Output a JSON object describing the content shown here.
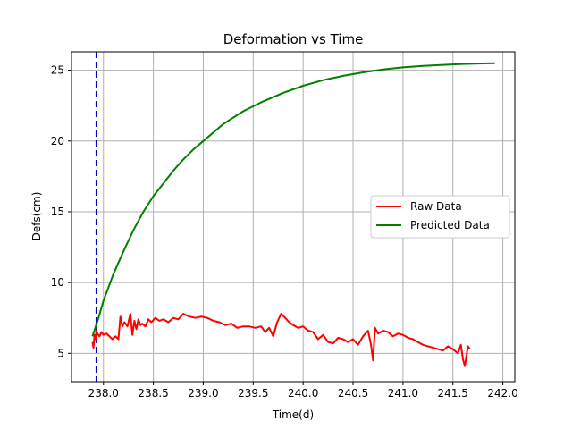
{
  "chart_data": {
    "type": "line",
    "title": "Deformation vs Time",
    "xlabel": "Time(d)",
    "ylabel": "Defs(cm)",
    "xlim": [
      237.68,
      242.12
    ],
    "ylim": [
      3.0,
      26.3
    ],
    "xticks": [
      238.0,
      238.5,
      239.0,
      239.5,
      240.0,
      240.5,
      241.0,
      241.5,
      242.0
    ],
    "xtick_labels": [
      "238.0",
      "238.5",
      "239.0",
      "239.5",
      "240.0",
      "240.5",
      "241.0",
      "241.5",
      "242.0"
    ],
    "yticks": [
      5,
      10,
      15,
      20,
      25
    ],
    "ytick_labels": [
      "5",
      "10",
      "15",
      "20",
      "25"
    ],
    "grid": true,
    "legend_position": "center-right",
    "vline": {
      "x": 237.93,
      "color": "#0000bf",
      "style": "dashed"
    },
    "series": [
      {
        "name": "Raw Data",
        "color": "#ff0000",
        "x": [
          237.89,
          237.9,
          237.91,
          237.92,
          237.93,
          237.94,
          237.96,
          237.98,
          238.0,
          238.03,
          238.06,
          238.09,
          238.12,
          238.15,
          238.17,
          238.19,
          238.21,
          238.24,
          238.27,
          238.29,
          238.31,
          238.33,
          238.35,
          238.37,
          238.39,
          238.42,
          238.45,
          238.48,
          238.52,
          238.56,
          238.6,
          238.65,
          238.7,
          238.75,
          238.8,
          238.86,
          238.92,
          238.98,
          239.04,
          239.1,
          239.16,
          239.22,
          239.28,
          239.34,
          239.4,
          239.46,
          239.52,
          239.58,
          239.62,
          239.66,
          239.7,
          239.74,
          239.78,
          239.82,
          239.86,
          239.9,
          239.95,
          240.0,
          240.05,
          240.1,
          240.15,
          240.2,
          240.25,
          240.3,
          240.35,
          240.4,
          240.45,
          240.5,
          240.55,
          240.6,
          240.65,
          240.68,
          240.7,
          240.72,
          240.75,
          240.8,
          240.85,
          240.9,
          240.95,
          241.0,
          241.05,
          241.1,
          241.15,
          241.2,
          241.25,
          241.3,
          241.35,
          241.4,
          241.45,
          241.5,
          241.55,
          241.58,
          241.6,
          241.62,
          241.65,
          241.67
        ],
        "y": [
          5.8,
          5.4,
          6.3,
          6.0,
          6.6,
          6.4,
          6.2,
          6.5,
          6.3,
          6.4,
          6.2,
          6.0,
          6.2,
          6.0,
          7.6,
          6.9,
          7.2,
          6.9,
          7.8,
          6.3,
          7.3,
          6.7,
          7.4,
          7.0,
          7.1,
          6.9,
          7.4,
          7.2,
          7.5,
          7.3,
          7.4,
          7.2,
          7.5,
          7.4,
          7.8,
          7.6,
          7.5,
          7.6,
          7.5,
          7.3,
          7.2,
          7.0,
          7.1,
          6.8,
          6.9,
          6.9,
          6.8,
          6.9,
          6.5,
          6.8,
          6.2,
          7.2,
          7.8,
          7.5,
          7.2,
          7.0,
          6.8,
          6.9,
          6.6,
          6.5,
          6.0,
          6.3,
          5.8,
          5.7,
          6.1,
          6.0,
          5.8,
          6.0,
          5.6,
          6.2,
          6.6,
          5.6,
          4.5,
          6.8,
          6.4,
          6.6,
          6.5,
          6.2,
          6.4,
          6.3,
          6.1,
          6.0,
          5.8,
          5.6,
          5.5,
          5.4,
          5.3,
          5.2,
          5.5,
          5.3,
          5.0,
          5.6,
          4.6,
          4.1,
          5.5,
          5.3
        ]
      },
      {
        "name": "Predicted Data",
        "color": "#008000",
        "x": [
          237.89,
          237.95,
          238.0,
          238.1,
          238.2,
          238.3,
          238.4,
          238.5,
          238.6,
          238.7,
          238.8,
          238.9,
          239.0,
          239.2,
          239.4,
          239.6,
          239.8,
          240.0,
          240.2,
          240.4,
          240.6,
          240.8,
          241.0,
          241.2,
          241.4,
          241.6,
          241.8,
          241.92
        ],
        "y": [
          6.2,
          7.5,
          8.7,
          10.6,
          12.2,
          13.7,
          15.0,
          16.1,
          17.0,
          17.9,
          18.7,
          19.4,
          20.0,
          21.2,
          22.1,
          22.8,
          23.4,
          23.9,
          24.3,
          24.6,
          24.85,
          25.05,
          25.2,
          25.3,
          25.38,
          25.44,
          25.48,
          25.5
        ]
      }
    ]
  }
}
